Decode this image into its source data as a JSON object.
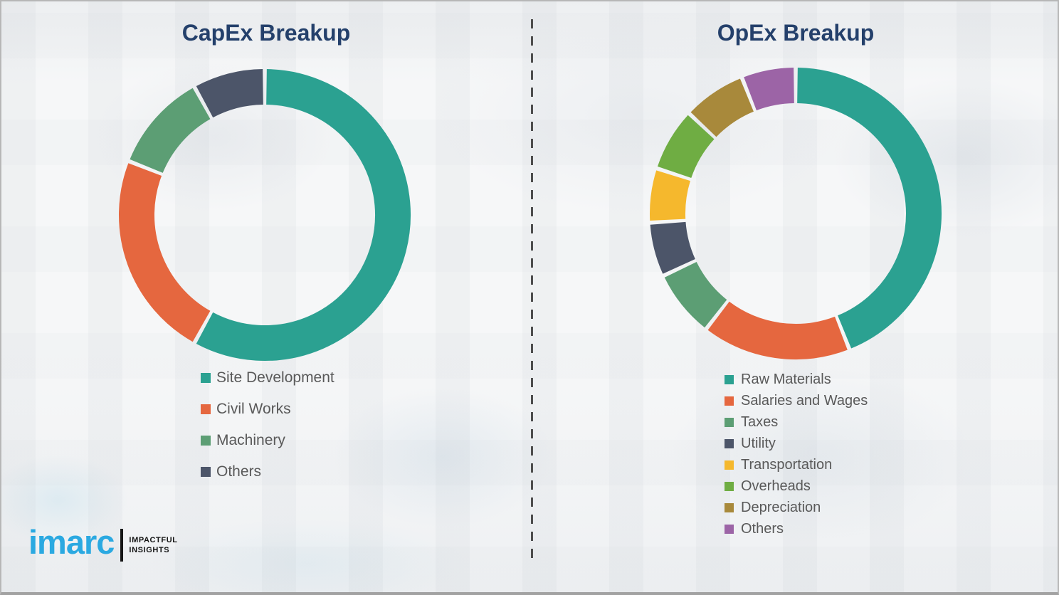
{
  "chart_data": [
    {
      "type": "donut",
      "title": "CapEx Breakup",
      "legend_position": "bottom-left",
      "units": "percent (estimated from arc angles; no labels printed)",
      "segments": [
        {
          "label": "Site Development",
          "value": 58,
          "color": "#2BA191"
        },
        {
          "label": "Civil Works",
          "value": 23,
          "color": "#E5673F"
        },
        {
          "label": "Machinery",
          "value": 11,
          "color": "#5C9E74"
        },
        {
          "label": "Others",
          "value": 8,
          "color": "#4C5569"
        }
      ]
    },
    {
      "type": "donut",
      "title": "OpEx Breakup",
      "legend_position": "bottom-left",
      "units": "percent (estimated from arc angles; no labels printed)",
      "segments": [
        {
          "label": "Raw Materials",
          "value": 44,
          "color": "#2BA191"
        },
        {
          "label": "Salaries and Wages",
          "value": 16.5,
          "color": "#E5673F"
        },
        {
          "label": "Taxes",
          "value": 7.5,
          "color": "#5C9E74"
        },
        {
          "label": "Utility",
          "value": 6,
          "color": "#4C5569"
        },
        {
          "label": "Transportation",
          "value": 6,
          "color": "#F5B82D"
        },
        {
          "label": "Overheads",
          "value": 7,
          "color": "#6FAD43"
        },
        {
          "label": "Depreciation",
          "value": 7,
          "color": "#A8893B"
        },
        {
          "label": "Others",
          "value": 6,
          "color": "#9C64A6"
        }
      ]
    }
  ],
  "logo": {
    "wordmark": "imarc",
    "tagline_line1": "IMPACTFUL",
    "tagline_line2": "INSIGHTS",
    "brand_color": "#2BA9E1"
  },
  "colors": {
    "title_text": "#24406B",
    "legend_text": "#595959"
  }
}
